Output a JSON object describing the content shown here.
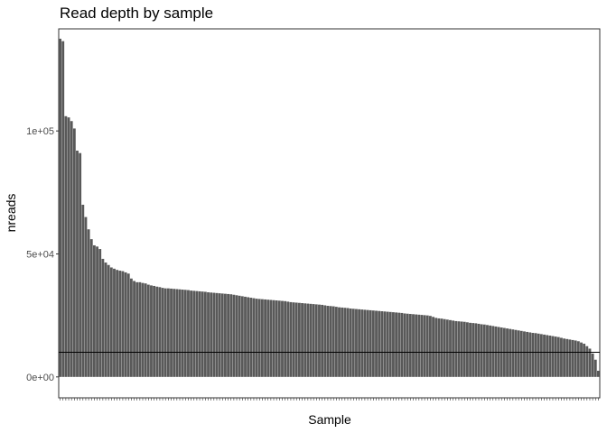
{
  "chart_data": {
    "type": "bar",
    "title": "Read depth by sample",
    "xlabel": "Sample",
    "ylabel": "nreads",
    "ylim": [
      -8500,
      141500
    ],
    "y_ticks": [
      {
        "value": 0,
        "label": "0e+00"
      },
      {
        "value": 50000,
        "label": "5e+04"
      },
      {
        "value": 100000,
        "label": "1e+05"
      }
    ],
    "x_tick_labels_note": "",
    "hline": 10000,
    "grid": false,
    "bar_color": "#595959",
    "values": [
      137500,
      136500,
      106000,
      105500,
      104000,
      101000,
      92000,
      91000,
      70000,
      65000,
      60000,
      56000,
      53500,
      53000,
      52000,
      48000,
      46500,
      45500,
      44500,
      44000,
      43500,
      43200,
      43000,
      42500,
      42000,
      40000,
      39000,
      38500,
      38500,
      38200,
      38000,
      37500,
      37200,
      37000,
      36700,
      36500,
      36200,
      36000,
      36000,
      35900,
      35800,
      35700,
      35600,
      35500,
      35400,
      35300,
      35100,
      35000,
      34900,
      34800,
      34700,
      34600,
      34400,
      34300,
      34200,
      34100,
      34000,
      33900,
      33800,
      33700,
      33600,
      33400,
      33200,
      33000,
      32800,
      32600,
      32400,
      32200,
      32000,
      31800,
      31700,
      31600,
      31500,
      31400,
      31300,
      31200,
      31100,
      31000,
      30900,
      30800,
      30600,
      30400,
      30300,
      30200,
      30100,
      30000,
      29900,
      29800,
      29700,
      29600,
      29500,
      29400,
      29300,
      29100,
      28900,
      28800,
      28700,
      28500,
      28300,
      28200,
      28100,
      28000,
      27800,
      27700,
      27600,
      27500,
      27400,
      27300,
      27200,
      27100,
      27000,
      26900,
      26800,
      26700,
      26600,
      26500,
      26400,
      26300,
      26200,
      26100,
      26000,
      25800,
      25700,
      25600,
      25500,
      25400,
      25300,
      25200,
      25100,
      25000,
      24800,
      24400,
      24000,
      23800,
      23700,
      23500,
      23300,
      23100,
      22900,
      22700,
      22600,
      22500,
      22400,
      22200,
      22000,
      21900,
      21800,
      21600,
      21400,
      21300,
      21100,
      20900,
      20700,
      20500,
      20300,
      20100,
      19900,
      19700,
      19500,
      19300,
      19100,
      18900,
      18700,
      18500,
      18300,
      18100,
      17900,
      17800,
      17600,
      17400,
      17200,
      17000,
      16800,
      16600,
      16400,
      16200,
      15900,
      15600,
      15400,
      15200,
      15000,
      14800,
      14500,
      14000,
      13500,
      12500,
      11500,
      9500,
      7000,
      2500
    ]
  }
}
